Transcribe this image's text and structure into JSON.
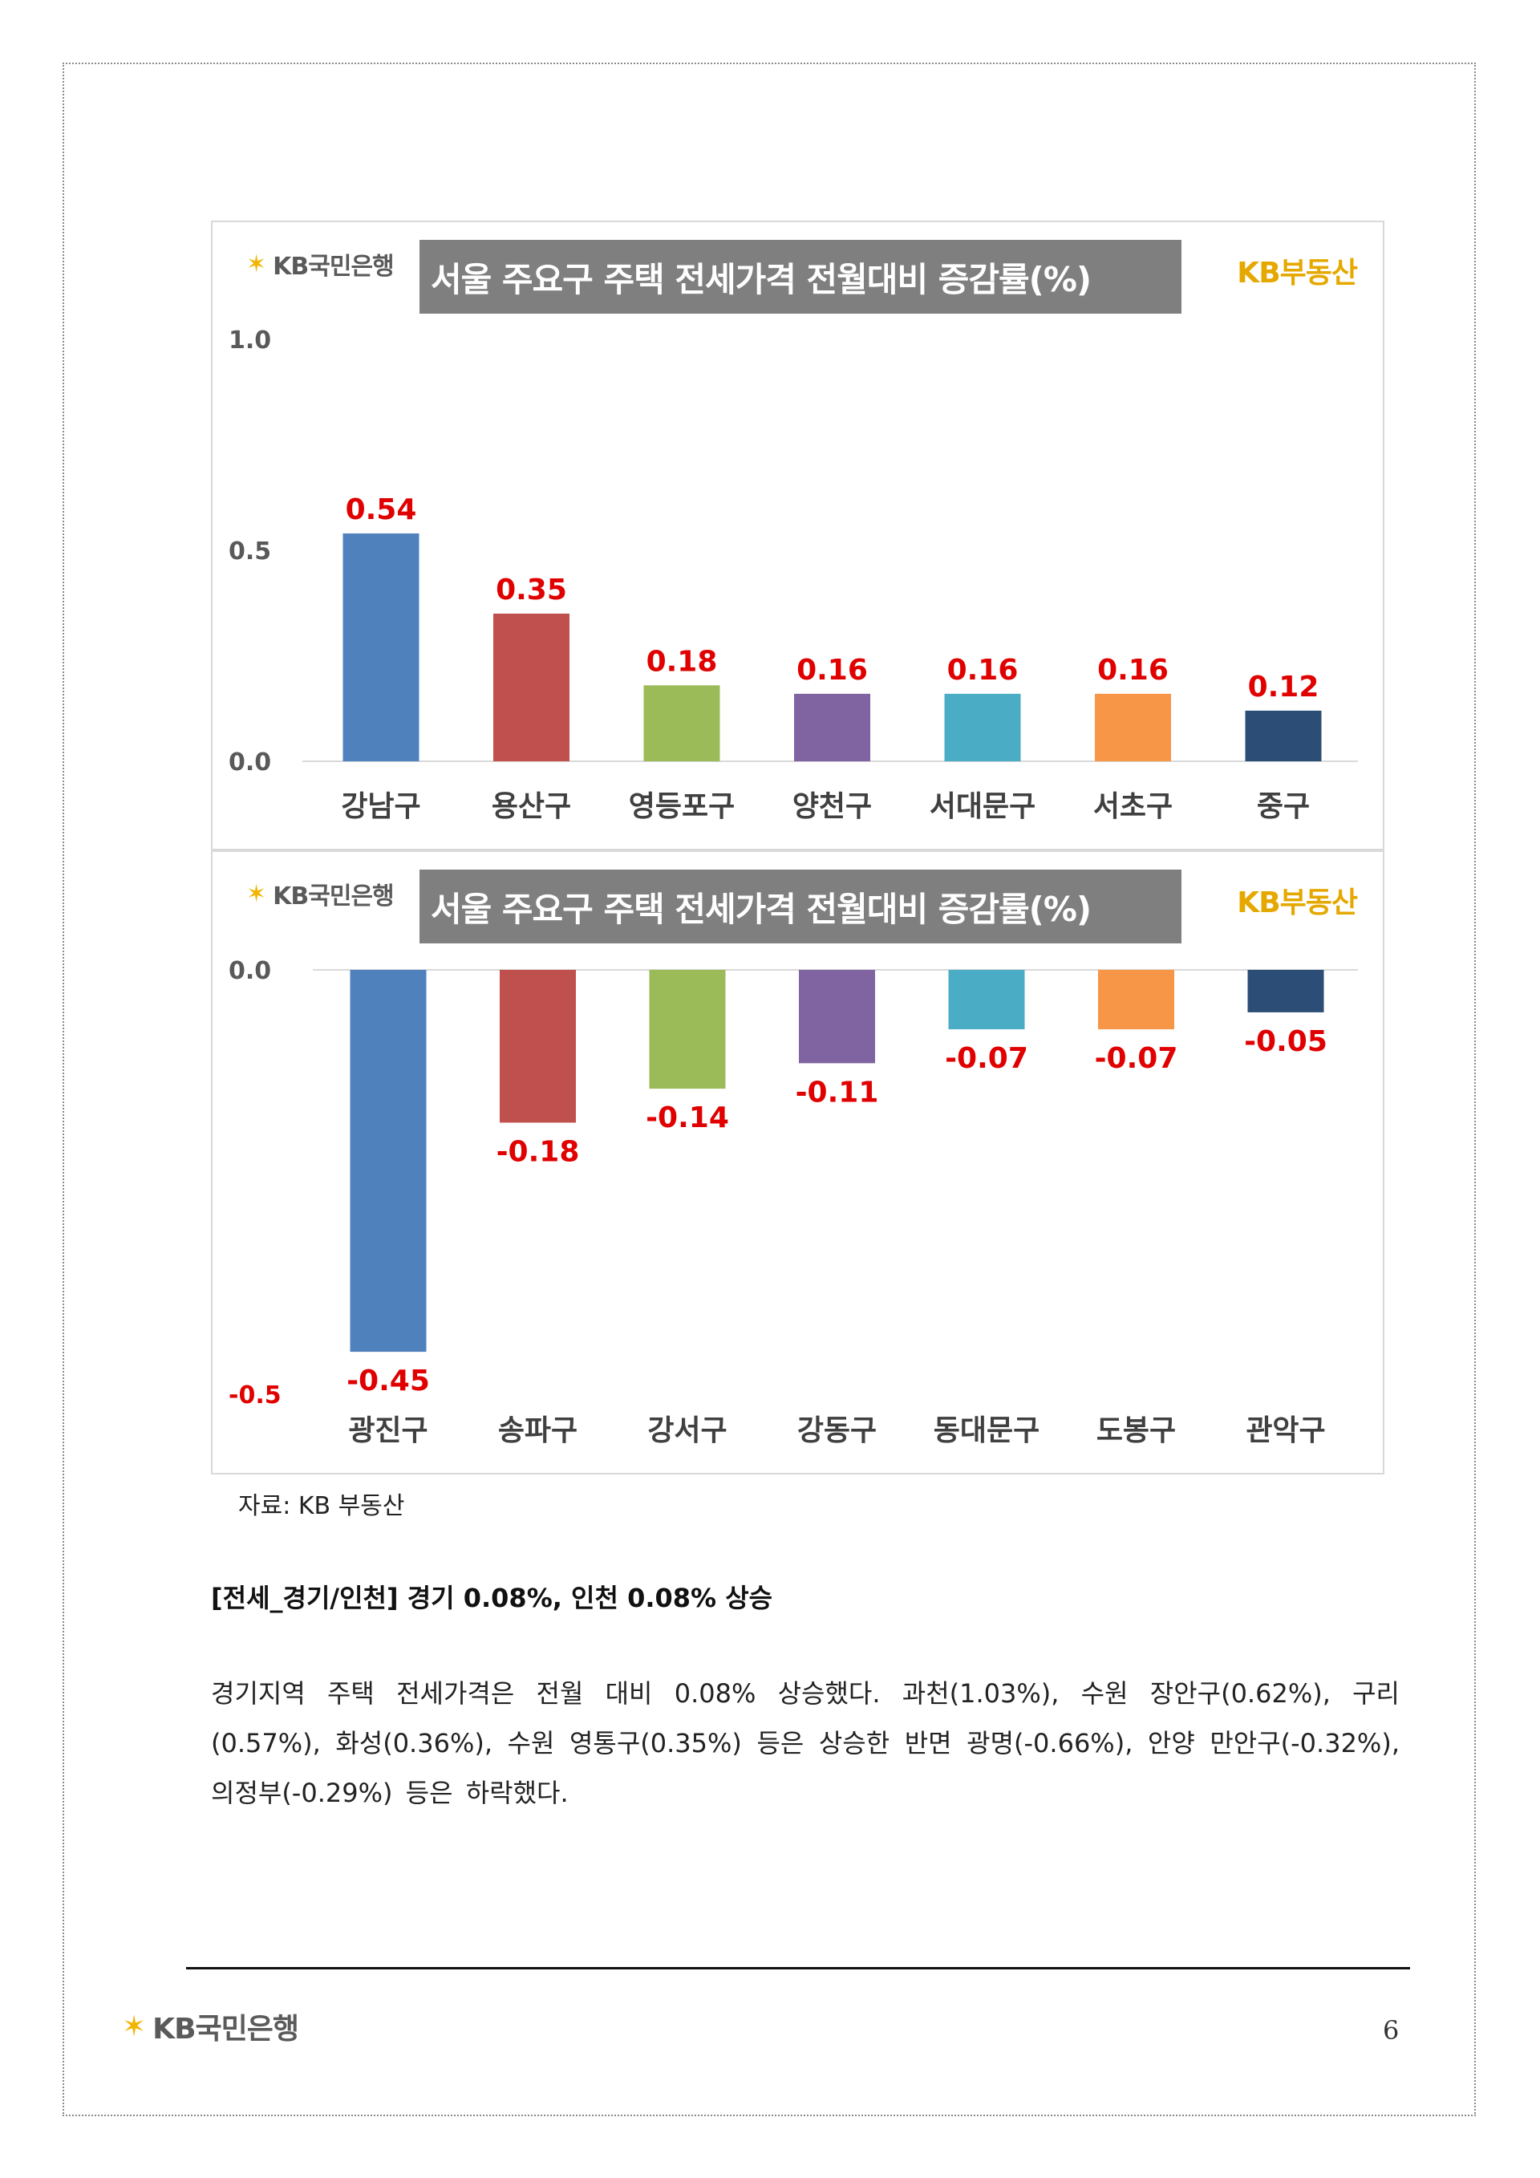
{
  "bank_logo": {
    "symbol": "✶",
    "text": "KB국민은행"
  },
  "chart_brand": "KB부동산",
  "charts": [
    {
      "title": "서울 주요구 주택 전세가격 전월대비 증감률(%)"
    },
    {
      "title": "서울 주요구 주택 전세가격 전월대비 증감률(%)"
    }
  ],
  "chart_data": [
    {
      "type": "bar",
      "title": "서울 주요구 주택 전세가격 전월대비 증감률(%)",
      "categories": [
        "강남구",
        "용산구",
        "영등포구",
        "양천구",
        "서대문구",
        "서초구",
        "중구"
      ],
      "values": [
        0.54,
        0.35,
        0.18,
        0.16,
        0.16,
        0.16,
        0.12
      ],
      "value_labels": [
        "0.54",
        "0.35",
        "0.18",
        "0.16",
        "0.16",
        "0.16",
        "0.12"
      ],
      "colors": [
        "#4f81bd",
        "#c0504d",
        "#9bbb59",
        "#8064a2",
        "#4bacc6",
        "#f79646",
        "#2c4d75"
      ],
      "label_color": "#e00000",
      "yticks": [
        0.0,
        0.5,
        1.0
      ],
      "ytick_labels": [
        "0.0",
        "0.5",
        "1.0"
      ],
      "ylim": [
        0.0,
        1.0
      ],
      "grid": false
    },
    {
      "type": "bar",
      "title": "서울 주요구 주택 전세가격 전월대비 증감률(%)",
      "categories": [
        "광진구",
        "송파구",
        "강서구",
        "강동구",
        "동대문구",
        "도봉구",
        "관악구"
      ],
      "values": [
        -0.45,
        -0.18,
        -0.14,
        -0.11,
        -0.07,
        -0.07,
        -0.05
      ],
      "value_labels": [
        "-0.45",
        "-0.18",
        "-0.14",
        "-0.11",
        "-0.07",
        "-0.07",
        "-0.05"
      ],
      "colors": [
        "#4f81bd",
        "#c0504d",
        "#9bbb59",
        "#8064a2",
        "#4bacc6",
        "#f79646",
        "#2c4d75"
      ],
      "label_color": "#e00000",
      "yticks": [
        0.0,
        -0.5
      ],
      "ytick_labels": [
        "0.0",
        "-0.5"
      ],
      "ylim": [
        -0.5,
        0.0
      ],
      "grid": false
    }
  ],
  "source_note": "자료: KB 부동산",
  "section_heading": "[전세_경기/인천] 경기 0.08%, 인천 0.08% 상승",
  "body_paragraph": "경기지역 주택 전세가격은 전월 대비 0.08% 상승했다. 과천(1.03%), 수원 장안구(0.62%), 구리(0.57%), 화성(0.36%), 수원 영통구(0.35%) 등은 상승한 반면 광명(-0.66%), 안양 만안구(-0.32%), 의정부(-0.29%) 등은 하락했다.",
  "footer": {
    "page_number": "6"
  }
}
